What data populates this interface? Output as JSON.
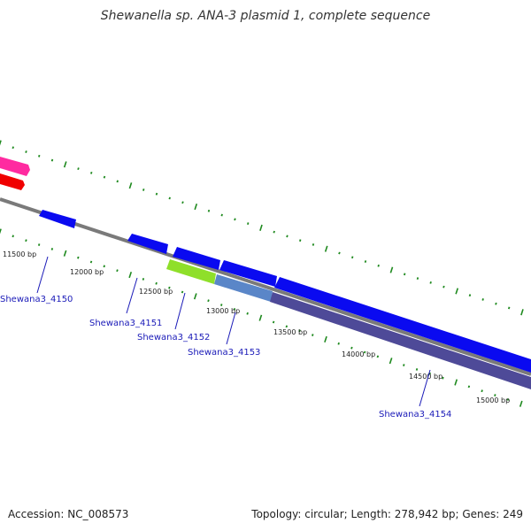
{
  "title": "Shewanella sp. ANA-3 plasmid 1, complete sequence",
  "footer": {
    "accession": "Accession: NC_008573",
    "summary": "Topology: circular; Length: 278,942 bp; Genes: 249"
  },
  "ruler": [
    {
      "label": "11500 bp"
    },
    {
      "label": "12000 bp"
    },
    {
      "label": "12500 bp"
    },
    {
      "label": "13000 bp"
    },
    {
      "label": "13500 bp"
    },
    {
      "label": "14000 bp"
    },
    {
      "label": "14500 bp"
    },
    {
      "label": "15000 bp"
    }
  ],
  "genes": [
    {
      "label": "Shewana3_4150"
    },
    {
      "label": "Shewana3_4151"
    },
    {
      "label": "Shewana3_4152"
    },
    {
      "label": "Shewana3_4153"
    },
    {
      "label": "Shewana3_4154"
    }
  ],
  "colors": {
    "backbone": "#7a7a7a",
    "gene_blue": "#0a0af0",
    "gene_pink": "#ff2aa0",
    "gene_red": "#f00000",
    "gene_green": "#8fdf2a",
    "gene_steel": "#5a86c8",
    "gene_purple": "#4e4a98",
    "tick_green": "#1f8a1f",
    "label_blue": "#1a1ab8"
  }
}
